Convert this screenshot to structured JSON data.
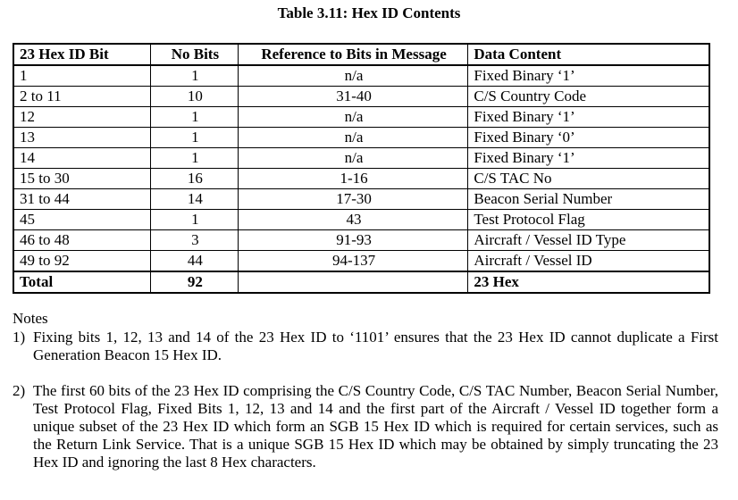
{
  "caption": "Table 3.11: Hex ID Contents",
  "table": {
    "headers": [
      "23 Hex ID Bit",
      "No Bits",
      "Reference to Bits in Message",
      "Data Content"
    ],
    "rows": [
      [
        "1",
        "1",
        "n/a",
        "Fixed Binary ‘1’"
      ],
      [
        "2 to 11",
        "10",
        "31-40",
        "C/S Country Code"
      ],
      [
        "12",
        "1",
        "n/a",
        "Fixed Binary ‘1’"
      ],
      [
        "13",
        "1",
        "n/a",
        "Fixed Binary ‘0’"
      ],
      [
        "14",
        "1",
        "n/a",
        "Fixed Binary ‘1’"
      ],
      [
        "15 to 30",
        "16",
        "1-16",
        "C/S TAC No"
      ],
      [
        "31 to 44",
        "14",
        "17-30",
        "Beacon Serial Number"
      ],
      [
        "45",
        "1",
        "43",
        "Test Protocol Flag"
      ],
      [
        "46 to 48",
        "3",
        "91-93",
        "Aircraft / Vessel ID Type"
      ],
      [
        "49 to 92",
        "44",
        "94-137",
        "Aircraft / Vessel ID"
      ]
    ],
    "total": [
      "Total",
      "92",
      "",
      "23 Hex"
    ]
  },
  "notes": {
    "title": "Notes",
    "items": [
      {
        "num": "1)",
        "text": "Fixing bits 1, 12, 13 and 14 of the 23 Hex ID to ‘1101’ ensures that the 23 Hex ID cannot duplicate a First Generation Beacon 15 Hex ID."
      },
      {
        "num": "2)",
        "text": "The first 60 bits of the 23 Hex ID comprising the C/S Country Code, C/S TAC Number, Beacon Serial Number, Test Protocol Flag, Fixed Bits 1, 12, 13 and 14 and the first part of the Aircraft / Vessel ID together form a unique subset of the 23 Hex ID which form an SGB 15 Hex ID which is required for certain services, such as the Return Link Service. That is a unique SGB 15 Hex ID which may be obtained by simply truncating the 23 Hex ID and ignoring the last 8 Hex characters."
      }
    ]
  }
}
